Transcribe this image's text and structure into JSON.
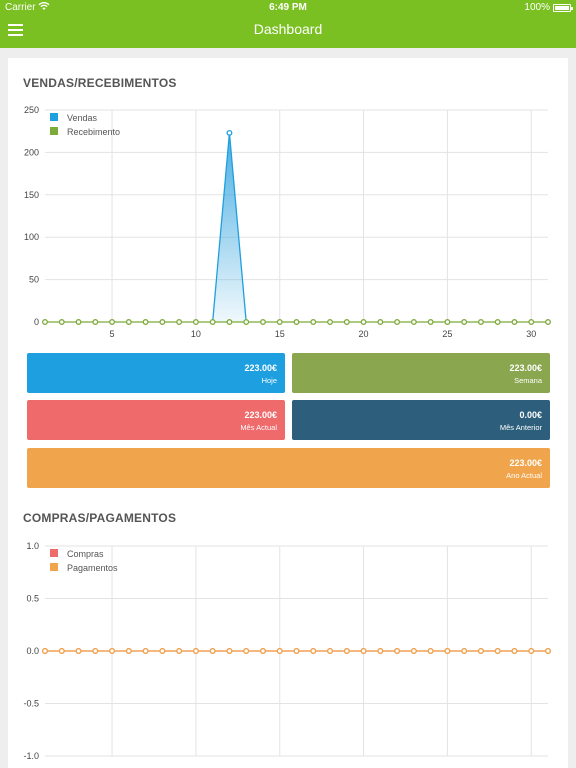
{
  "status_bar": {
    "carrier": "Carrier",
    "time": "6:49 PM",
    "battery": "100%"
  },
  "nav": {
    "title": "Dashboard",
    "menu_icon": "hamburger-menu-icon"
  },
  "sales_section": {
    "title": "VENDAS/RECEBIMENTOS",
    "tiles": [
      {
        "value": "223.00€",
        "label": "Hoje",
        "color": "#1e9fe0"
      },
      {
        "value": "223.00€",
        "label": "Semana",
        "color": "#8aa64e"
      },
      {
        "value": "223.00€",
        "label": "Mês Actual",
        "color": "#ee6a6b"
      },
      {
        "value": "0.00€",
        "label": "Mês Anterior",
        "color": "#2d5f7c"
      },
      {
        "value": "223.00€",
        "label": "Ano Actual",
        "color": "#f0a54c"
      }
    ]
  },
  "purchases_section": {
    "title": "COMPRAS/PAGAMENTOS"
  },
  "chart_data": [
    {
      "type": "area",
      "title": "VENDAS/RECEBIMENTOS",
      "xlabel": "",
      "ylabel": "",
      "ylim": [
        0,
        250
      ],
      "xlim": [
        1,
        31
      ],
      "yticks": [
        "0",
        "50",
        "100",
        "150",
        "200",
        "250"
      ],
      "xticks": [
        "5",
        "10",
        "15",
        "20",
        "25",
        "30"
      ],
      "grid": true,
      "legend_position": "top-left",
      "x": [
        1,
        2,
        3,
        4,
        5,
        6,
        7,
        8,
        9,
        10,
        11,
        12,
        13,
        14,
        15,
        16,
        17,
        18,
        19,
        20,
        21,
        22,
        23,
        24,
        25,
        26,
        27,
        28,
        29,
        30,
        31
      ],
      "series": [
        {
          "name": "Vendas",
          "color": "#1e9fe0",
          "values": [
            null,
            null,
            null,
            null,
            null,
            null,
            null,
            null,
            null,
            null,
            0,
            223,
            0,
            null,
            null,
            null,
            null,
            null,
            null,
            null,
            null,
            null,
            null,
            null,
            null,
            null,
            null,
            null,
            null,
            null,
            null
          ]
        },
        {
          "name": "Recebimento",
          "color": "#7cab3a",
          "values": [
            0,
            0,
            0,
            0,
            0,
            0,
            0,
            0,
            0,
            0,
            0,
            0,
            0,
            0,
            0,
            0,
            0,
            0,
            0,
            0,
            0,
            0,
            0,
            0,
            0,
            0,
            0,
            0,
            0,
            0,
            0
          ]
        }
      ]
    },
    {
      "type": "line",
      "title": "COMPRAS/PAGAMENTOS",
      "xlabel": "",
      "ylabel": "",
      "ylim": [
        -1.0,
        1.0
      ],
      "xlim": [
        1,
        31
      ],
      "yticks": [
        "-1.0",
        "-0.5",
        "0.0",
        "0.5",
        "1.0"
      ],
      "xticks": [],
      "grid": true,
      "legend_position": "top-left",
      "x": [
        1,
        2,
        3,
        4,
        5,
        6,
        7,
        8,
        9,
        10,
        11,
        12,
        13,
        14,
        15,
        16,
        17,
        18,
        19,
        20,
        21,
        22,
        23,
        24,
        25,
        26,
        27,
        28,
        29,
        30,
        31
      ],
      "series": [
        {
          "name": "Compras",
          "color": "#ee6a6b",
          "values": [
            0,
            0,
            0,
            0,
            0,
            0,
            0,
            0,
            0,
            0,
            0,
            0,
            0,
            0,
            0,
            0,
            0,
            0,
            0,
            0,
            0,
            0,
            0,
            0,
            0,
            0,
            0,
            0,
            0,
            0,
            0
          ]
        },
        {
          "name": "Pagamentos",
          "color": "#f0a54c",
          "values": [
            0,
            0,
            0,
            0,
            0,
            0,
            0,
            0,
            0,
            0,
            0,
            0,
            0,
            0,
            0,
            0,
            0,
            0,
            0,
            0,
            0,
            0,
            0,
            0,
            0,
            0,
            0,
            0,
            0,
            0,
            0
          ]
        }
      ]
    }
  ]
}
